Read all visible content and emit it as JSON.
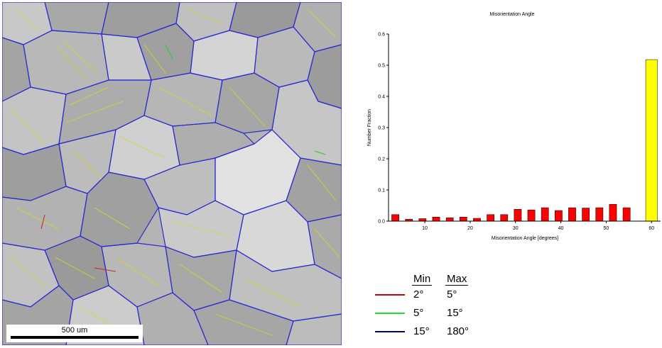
{
  "micrograph": {
    "scale_label": "500 um"
  },
  "chart_data": {
    "type": "bar",
    "title": "Misorientation Angle",
    "xlabel": "Misorientation Angle [degrees]",
    "ylabel": "Number Fraction",
    "xlim": [
      2,
      62
    ],
    "ylim": [
      0,
      0.6
    ],
    "x_ticks": [
      10,
      20,
      30,
      40,
      50,
      60
    ],
    "y_ticks": [
      0.0,
      0.1,
      0.2,
      0.3,
      0.4,
      0.5,
      0.6
    ],
    "bar_width": 1.6,
    "colors": {
      "default": "#ff0000",
      "twin": "#ffff00"
    },
    "bars": [
      {
        "x": 3.5,
        "value": 0.021
      },
      {
        "x": 6.5,
        "value": 0.006
      },
      {
        "x": 9.5,
        "value": 0.008
      },
      {
        "x": 12.5,
        "value": 0.013
      },
      {
        "x": 15.5,
        "value": 0.011
      },
      {
        "x": 18.5,
        "value": 0.013
      },
      {
        "x": 21.5,
        "value": 0.009
      },
      {
        "x": 24.5,
        "value": 0.021
      },
      {
        "x": 27.5,
        "value": 0.021
      },
      {
        "x": 30.5,
        "value": 0.038
      },
      {
        "x": 33.5,
        "value": 0.036
      },
      {
        "x": 36.5,
        "value": 0.043
      },
      {
        "x": 39.5,
        "value": 0.034
      },
      {
        "x": 42.5,
        "value": 0.043
      },
      {
        "x": 45.5,
        "value": 0.042
      },
      {
        "x": 48.5,
        "value": 0.043
      },
      {
        "x": 51.5,
        "value": 0.054
      },
      {
        "x": 54.5,
        "value": 0.043
      },
      {
        "x": 60.0,
        "value": 0.518,
        "color": "#ffff00"
      }
    ],
    "grid": false
  },
  "legend": {
    "min_header": "Min",
    "max_header": "Max",
    "rows": [
      {
        "color": "#cc0000",
        "min": "2°",
        "max": "5°"
      },
      {
        "color": "#22dd22",
        "min": "5°",
        "max": "15°"
      },
      {
        "color": "#000080",
        "min": "15°",
        "max": "180°"
      }
    ]
  }
}
